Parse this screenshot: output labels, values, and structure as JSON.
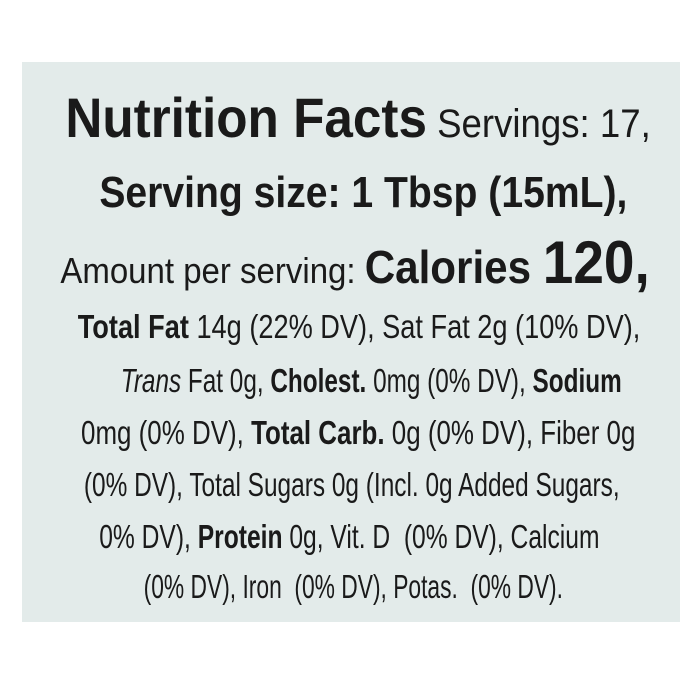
{
  "label": {
    "lines": [
      [
        "Nutrition Facts",
        " Servings: 17,"
      ],
      [
        "Serving size: 1 Tbsp (15mL),"
      ],
      [
        "Amount per serving: ",
        "Calories ",
        "120,"
      ],
      [
        "Total Fat",
        " 14g (22% DV), Sat Fat 2g (10% DV),"
      ],
      [
        "Trans",
        " Fat 0g, ",
        "Cholest.",
        " 0mg (0% DV), ",
        "Sodium"
      ],
      [
        "0mg (0% DV), ",
        "Total Carb.",
        " 0g (0% DV), Fiber 0g"
      ],
      [
        "(0% DV), Total Sugars 0g (Incl. 0g Added Sugars,"
      ],
      [
        "0% DV), ",
        "Protein",
        " 0g, Vit. D  (0% DV), Calcium"
      ],
      [
        "(0% DV), Iron  (0% DV), Potas.  (0% DV)."
      ]
    ]
  }
}
